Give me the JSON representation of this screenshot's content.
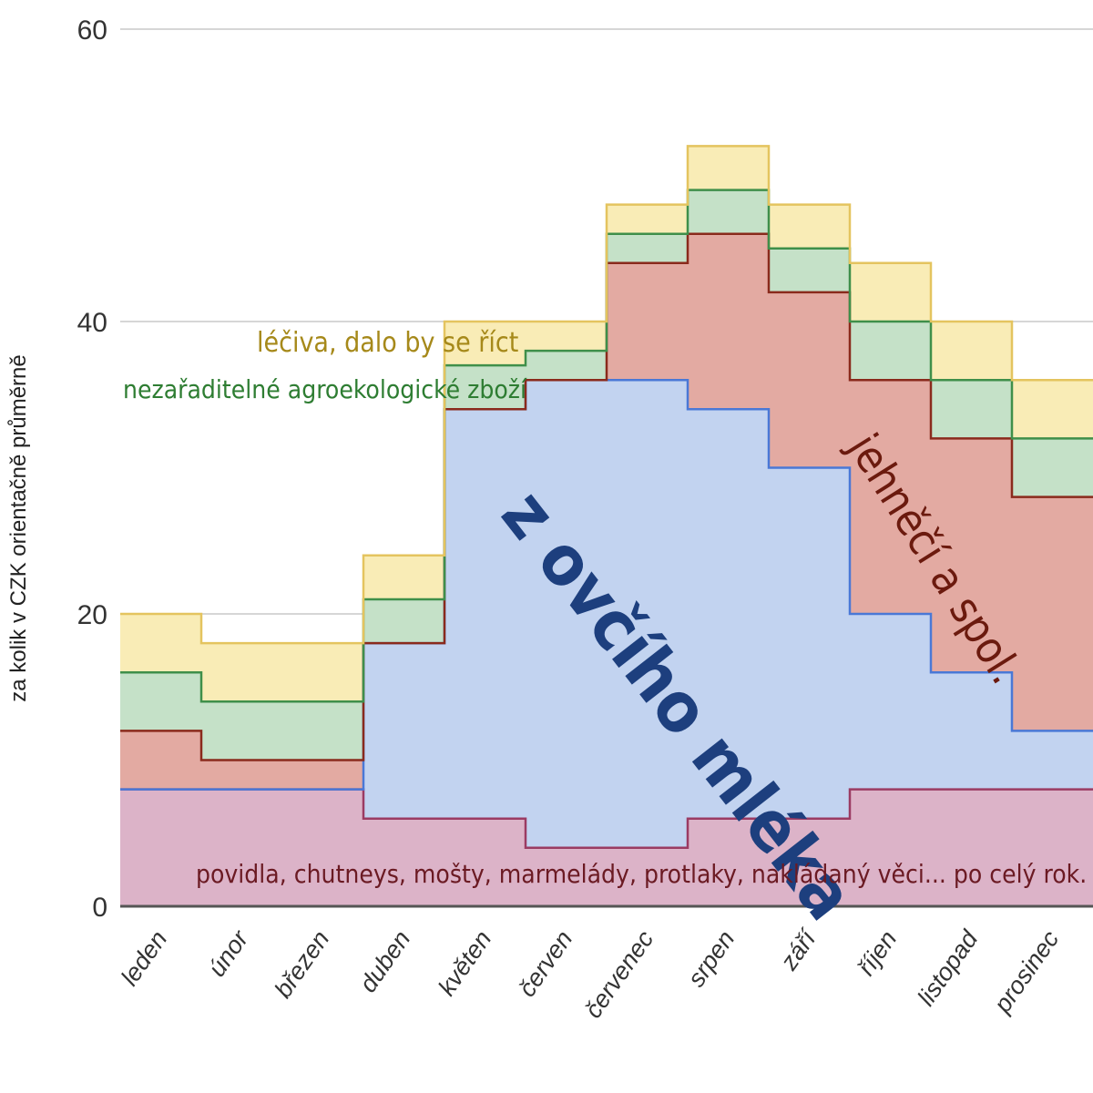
{
  "chart_data": {
    "type": "area",
    "stacked": true,
    "step": true,
    "categories": [
      "leden",
      "únor",
      "březen",
      "duben",
      "květen",
      "červen",
      "červenec",
      "srpen",
      "září",
      "říjen",
      "listopad",
      "prosinec"
    ],
    "ylabel": "za kolik v CZK orientačně průměrně",
    "ylim": [
      0,
      60
    ],
    "yticks": [
      0,
      20,
      40,
      60
    ],
    "grid": true,
    "series": [
      {
        "key": "povidla",
        "color": "#dcb3c8",
        "line": "#9b3b63",
        "values": [
          8,
          8,
          8,
          6,
          6,
          4,
          4,
          6,
          6,
          8,
          8,
          8
        ]
      },
      {
        "key": "mleko",
        "color": "#c2d3f0",
        "line": "#4a78d6",
        "values": [
          0,
          0,
          0,
          12,
          28,
          32,
          32,
          28,
          24,
          12,
          8,
          4
        ]
      },
      {
        "key": "jehneci",
        "color": "#e3aaa2",
        "line": "#8a2a1c",
        "values": [
          4,
          2,
          2,
          0,
          0,
          0,
          8,
          12,
          12,
          16,
          16,
          16
        ]
      },
      {
        "key": "agro",
        "color": "#c5e1c8",
        "line": "#3f8f4a",
        "values": [
          4,
          4,
          4,
          3,
          3,
          2,
          2,
          3,
          3,
          4,
          4,
          4
        ]
      },
      {
        "key": "leciva",
        "color": "#f9ecb6",
        "line": "#e4c45f",
        "values": [
          4,
          4,
          4,
          3,
          3,
          2,
          2,
          3,
          3,
          4,
          4,
          4
        ]
      }
    ],
    "annotations": {
      "leciva": "léčiva, dalo by se říct",
      "agro": "nezařaditelné agroekologické zboží",
      "mleko": "z ovčího mléka",
      "jehneci": "jehněčí a spol.",
      "povidla": "povidla, chutneys, mošty, marmelády, protlaky, nakládaný věci...  po celý rok."
    },
    "annotation_colors": {
      "leciva": "#a6891a",
      "agro": "#2e7d32",
      "mleko": "#1d3f7e",
      "jehneci": "#6b1a0e",
      "povidla": "#6b1a23"
    }
  }
}
